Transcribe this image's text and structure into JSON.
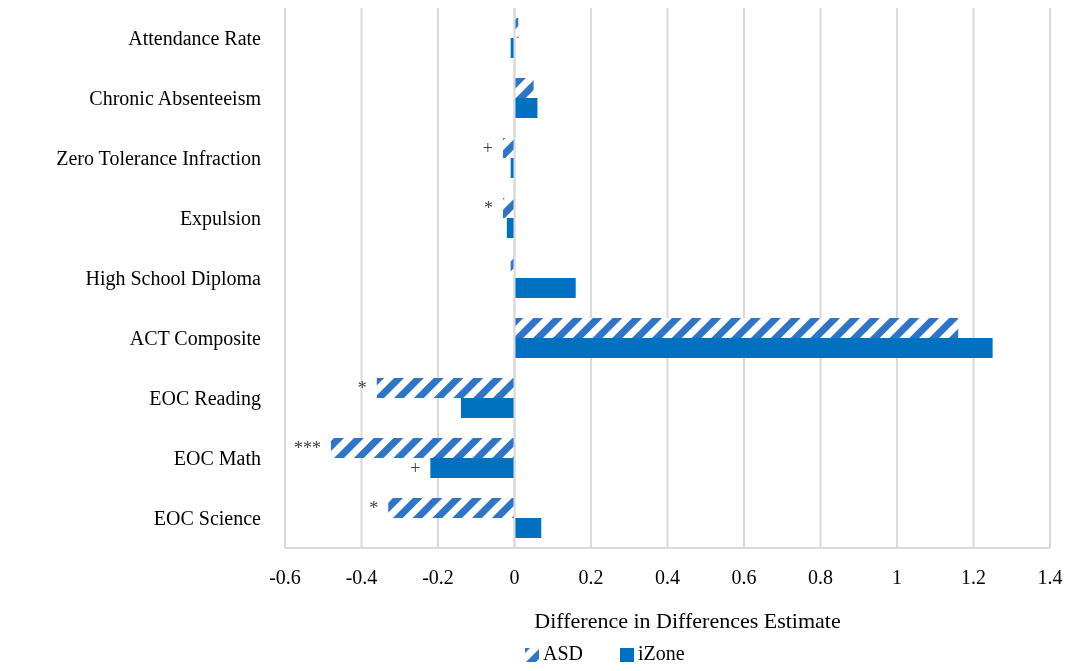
{
  "chart_data": {
    "type": "bar",
    "orientation": "horizontal",
    "xlabel": "Difference in Differences Estimate",
    "categories": [
      "Attendance Rate",
      "Chronic Absenteeism",
      "Zero Tolerance Infraction",
      "Expulsion",
      "High School Diploma",
      "ACT Composite",
      "EOC Reading",
      "EOC Math",
      "EOC Science"
    ],
    "series": [
      {
        "name": "ASD",
        "color": "#2e75c8",
        "values": [
          0.01,
          0.05,
          -0.03,
          -0.03,
          -0.01,
          1.16,
          -0.36,
          -0.48,
          -0.33
        ]
      },
      {
        "name": "iZone",
        "color": "#0070c0",
        "values": [
          -0.01,
          0.06,
          -0.01,
          -0.02,
          0.16,
          1.25,
          -0.14,
          -0.22,
          0.07
        ]
      }
    ],
    "xlim": [
      -0.6,
      1.4
    ],
    "xticks": [
      -0.6,
      -0.4,
      -0.2,
      0,
      0.2,
      0.4,
      0.6,
      0.8,
      1,
      1.2,
      1.4
    ],
    "grid": "x",
    "legend": "bottom",
    "annotations": [
      {
        "text": "+",
        "x": -0.03,
        "y": "Zero Tolerance Infraction"
      },
      {
        "text": "*",
        "x": -0.03,
        "y": "Expulsion"
      },
      {
        "text": "*",
        "x": -0.36,
        "y": "EOC Reading"
      },
      {
        "text": "***",
        "x": -0.48,
        "y": "EOC Math"
      },
      {
        "text": "+",
        "x": -0.22,
        "y": "EOC Math"
      },
      {
        "text": "*",
        "x": -0.33,
        "y": "EOC Science"
      }
    ]
  }
}
